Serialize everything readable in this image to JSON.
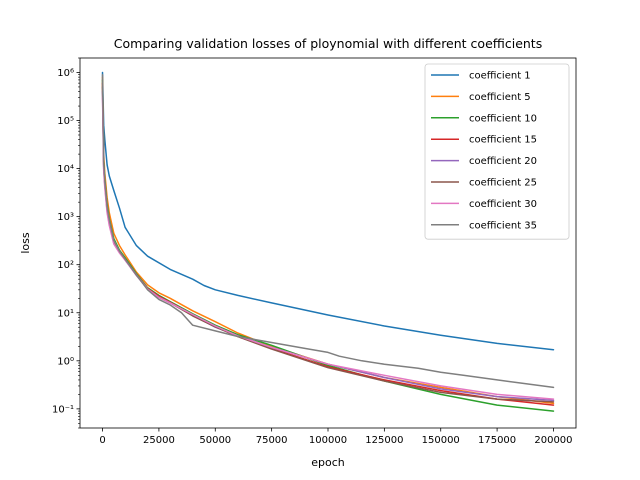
{
  "chart_data": {
    "type": "line",
    "title": "Comparing validation losses of ploynomial with different coefficients",
    "xlabel": "epoch",
    "ylabel": "loss",
    "xscale": "linear",
    "yscale": "log",
    "xlim": [
      -10000,
      210000
    ],
    "ylim": [
      0.04,
      2000000
    ],
    "xticks": [
      0,
      25000,
      50000,
      75000,
      100000,
      125000,
      150000,
      175000,
      200000
    ],
    "yticks": [
      {
        "value": 0.1,
        "label": "10⁻¹"
      },
      {
        "value": 1,
        "label": "10⁰"
      },
      {
        "value": 10,
        "label": "10¹"
      },
      {
        "value": 100,
        "label": "10²"
      },
      {
        "value": 1000,
        "label": "10³"
      },
      {
        "value": 10000,
        "label": "10⁴"
      },
      {
        "value": 100000,
        "label": "10⁵"
      },
      {
        "value": 1000000,
        "label": "10⁶"
      }
    ],
    "legend_position": "top-right",
    "series": [
      {
        "name": "coefficient 1",
        "color": "#1f77b4",
        "x": [
          0,
          500,
          1000,
          2000,
          3000,
          5000,
          7500,
          10000,
          15000,
          20000,
          30000,
          40000,
          45000,
          50000,
          60000,
          75000,
          100000,
          125000,
          150000,
          175000,
          200000
        ],
        "y": [
          1000000,
          80000,
          40000,
          12000,
          7000,
          3500,
          1500,
          600,
          250,
          150,
          80,
          50,
          37,
          30,
          23,
          16,
          9,
          5.3,
          3.4,
          2.3,
          1.7
        ]
      },
      {
        "name": "coefficient 5",
        "color": "#ff7f0e",
        "x": [
          0,
          500,
          1000,
          2000,
          3000,
          5000,
          7500,
          10000,
          15000,
          20000,
          25000,
          30000,
          40000,
          50000,
          60000,
          75000,
          100000,
          125000,
          150000,
          175000,
          200000
        ],
        "y": [
          800000,
          20000,
          8000,
          2500,
          1200,
          450,
          250,
          160,
          70,
          38,
          26,
          20,
          11,
          6.5,
          3.8,
          2,
          0.85,
          0.45,
          0.28,
          0.18,
          0.13
        ]
      },
      {
        "name": "coefficient 10",
        "color": "#2ca02c",
        "x": [
          0,
          500,
          1000,
          2000,
          3000,
          5000,
          7500,
          10000,
          15000,
          20000,
          25000,
          30000,
          40000,
          50000,
          60000,
          75000,
          100000,
          125000,
          150000,
          175000,
          200000
        ],
        "y": [
          700000,
          15000,
          6000,
          1800,
          900,
          350,
          200,
          140,
          65,
          33,
          23,
          17,
          9.5,
          5.5,
          3.5,
          2.1,
          0.8,
          0.38,
          0.2,
          0.12,
          0.09
        ]
      },
      {
        "name": "coefficient 15",
        "color": "#d62728",
        "x": [
          0,
          500,
          1000,
          2000,
          3000,
          5000,
          7500,
          10000,
          15000,
          20000,
          25000,
          30000,
          40000,
          50000,
          60000,
          75000,
          100000,
          125000,
          150000,
          175000,
          200000
        ],
        "y": [
          600000,
          12000,
          5000,
          1500,
          800,
          300,
          190,
          130,
          62,
          32,
          22,
          16.5,
          9,
          5.2,
          3.2,
          1.8,
          0.75,
          0.4,
          0.24,
          0.16,
          0.12
        ]
      },
      {
        "name": "coefficient 20",
        "color": "#9467bd",
        "x": [
          0,
          500,
          1000,
          2000,
          3000,
          5000,
          7500,
          10000,
          15000,
          20000,
          25000,
          30000,
          40000,
          50000,
          60000,
          75000,
          100000,
          125000,
          150000,
          175000,
          200000
        ],
        "y": [
          400000,
          10000,
          4500,
          1300,
          700,
          280,
          185,
          125,
          60,
          31,
          21,
          16,
          8.8,
          5,
          3.3,
          1.9,
          0.85,
          0.45,
          0.26,
          0.18,
          0.15
        ]
      },
      {
        "name": "coefficient 25",
        "color": "#8c564b",
        "x": [
          0,
          500,
          1000,
          2000,
          3000,
          5000,
          7500,
          10000,
          15000,
          20000,
          25000,
          30000,
          40000,
          50000,
          60000,
          75000,
          100000,
          125000,
          150000,
          175000,
          200000
        ],
        "y": [
          500000,
          11000,
          4800,
          1400,
          750,
          290,
          180,
          128,
          61,
          31,
          21,
          16,
          8.6,
          5.1,
          3.2,
          1.75,
          0.72,
          0.38,
          0.22,
          0.16,
          0.14
        ]
      },
      {
        "name": "coefficient 30",
        "color": "#e377c2",
        "x": [
          0,
          500,
          1000,
          2000,
          3000,
          5000,
          7500,
          10000,
          15000,
          20000,
          25000,
          30000,
          40000,
          50000,
          60000,
          75000,
          100000,
          125000,
          150000,
          175000,
          200000
        ],
        "y": [
          300000,
          9000,
          4000,
          1200,
          650,
          270,
          175,
          125,
          62,
          31,
          21,
          16,
          9.2,
          5.3,
          3.3,
          1.9,
          0.85,
          0.5,
          0.3,
          0.2,
          0.16
        ]
      },
      {
        "name": "coefficient 35",
        "color": "#7f7f7f",
        "x": [
          0,
          500,
          1000,
          2000,
          3000,
          5000,
          7500,
          10000,
          15000,
          20000,
          25000,
          30000,
          35000,
          38000,
          40000,
          50000,
          60000,
          75000,
          90000,
          100000,
          105000,
          115000,
          125000,
          140000,
          150000,
          160000,
          175000,
          200000
        ],
        "y": [
          900000,
          14000,
          5500,
          1600,
          850,
          320,
          190,
          130,
          62,
          30,
          19,
          14.5,
          10,
          7,
          5.5,
          4.2,
          3.2,
          2.4,
          1.8,
          1.5,
          1.25,
          1.0,
          0.85,
          0.7,
          0.58,
          0.5,
          0.4,
          0.28
        ]
      }
    ]
  }
}
